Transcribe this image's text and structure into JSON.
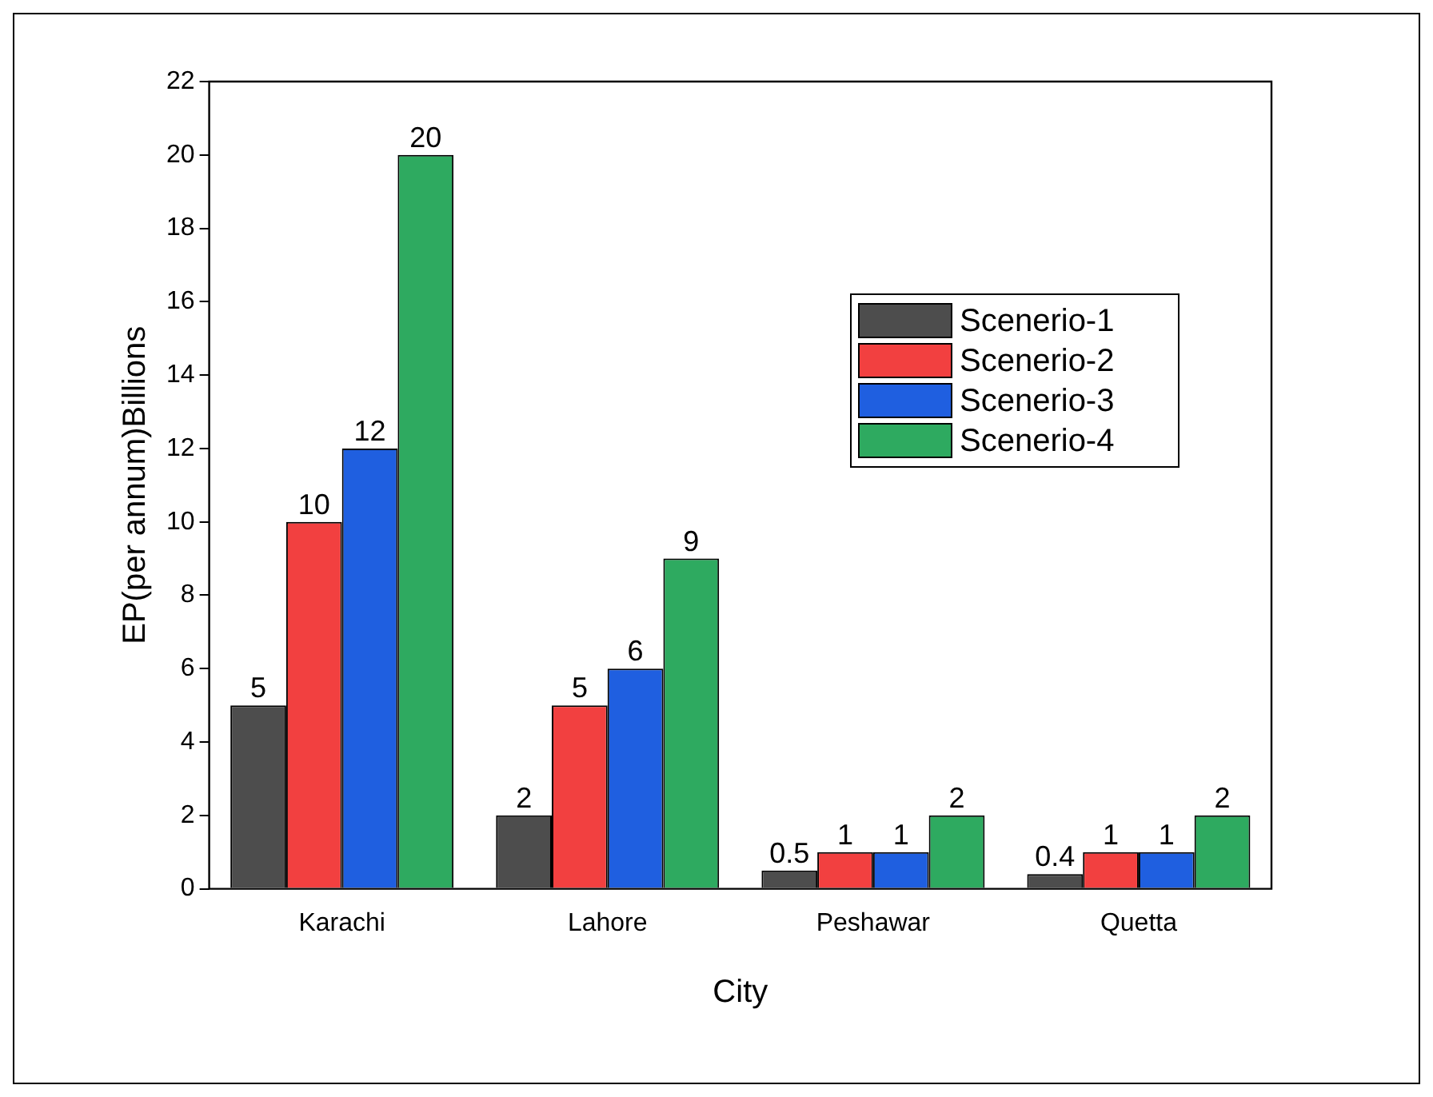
{
  "chart_data": {
    "type": "bar",
    "xlabel": "City",
    "ylabel": "EP(per annum)Billions",
    "categories": [
      "Karachi",
      "Lahore",
      "Peshawar",
      "Quetta"
    ],
    "series": [
      {
        "name": "Scenerio-1",
        "color": "#4d4d4d",
        "values": [
          5,
          2,
          0.5,
          0.4
        ]
      },
      {
        "name": "Scenerio-2",
        "color": "#f24040",
        "values": [
          10,
          5,
          1,
          1
        ]
      },
      {
        "name": "Scenerio-3",
        "color": "#1f5fe0",
        "values": [
          12,
          6,
          1,
          1
        ]
      },
      {
        "name": "Scenerio-4",
        "color": "#2eaa60",
        "values": [
          20,
          9,
          2,
          2
        ]
      }
    ],
    "ylim": [
      0,
      22
    ],
    "yticks": [
      0,
      2,
      4,
      6,
      8,
      10,
      12,
      14,
      16,
      18,
      20,
      22
    ],
    "grid": false,
    "legend": "top right",
    "data_labels": true
  }
}
